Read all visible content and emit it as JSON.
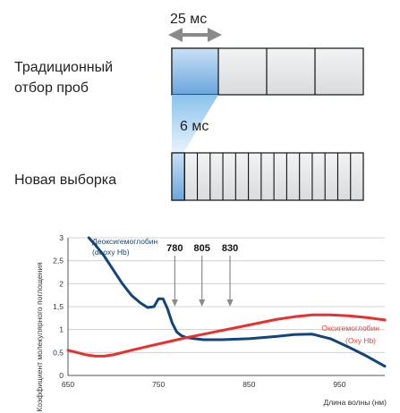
{
  "timing": {
    "period_label": "25 мс",
    "new_period_label": "6 мс"
  },
  "rows": {
    "traditional_line1": "Традиционный",
    "traditional_line2": "отбор проб",
    "new": "Новая выборка"
  },
  "sampling": {
    "traditional_boxes": 4,
    "new_boxes": 15
  },
  "colors": {
    "highlight": "#7fb4e4",
    "box_fill": "#e4e6e8",
    "deoxy": "#13447a",
    "oxy": "#e8312f",
    "oxy_label": "#e8463b",
    "arrow": "#8a8a8a"
  },
  "chart_data": {
    "type": "line",
    "xlabel": "Длина волны (нм)",
    "ylabel": "Коэффициент молекулярного поглощения",
    "xlim": [
      650,
      1000
    ],
    "ylim": [
      0,
      3
    ],
    "x_ticks": [
      "650",
      "750",
      "850",
      "950"
    ],
    "y_ticks": [
      "0",
      "0,5",
      "1",
      "1,5",
      "2",
      "2,5",
      "3"
    ],
    "grid": "horizontal",
    "markers": [
      {
        "label": "780",
        "x": 768
      },
      {
        "label": "805",
        "x": 798
      },
      {
        "label": "830",
        "x": 829
      }
    ],
    "series": [
      {
        "name_line1": "Деоксигемоглобин",
        "name_line2": "(deoxy Hb)",
        "x": [
          673,
          680,
          690,
          700,
          710,
          720,
          730,
          738,
          745,
          750,
          755,
          760,
          765,
          770,
          775,
          780,
          790,
          800,
          820,
          850,
          880,
          900,
          920,
          940,
          960,
          980,
          1000
        ],
        "y": [
          3.0,
          2.85,
          2.6,
          2.3,
          2.0,
          1.75,
          1.58,
          1.48,
          1.5,
          1.67,
          1.67,
          1.45,
          1.15,
          0.95,
          0.87,
          0.83,
          0.8,
          0.78,
          0.78,
          0.8,
          0.85,
          0.89,
          0.9,
          0.8,
          0.62,
          0.42,
          0.2
        ]
      },
      {
        "name_line1": "Оксигемоглобин",
        "name_line2": "(Oxy Hb)",
        "x": [
          650,
          660,
          670,
          680,
          690,
          700,
          720,
          740,
          760,
          780,
          800,
          820,
          840,
          860,
          880,
          900,
          920,
          940,
          960,
          980,
          1000
        ],
        "y": [
          0.55,
          0.5,
          0.45,
          0.42,
          0.42,
          0.45,
          0.55,
          0.64,
          0.73,
          0.82,
          0.9,
          0.98,
          1.06,
          1.14,
          1.22,
          1.28,
          1.32,
          1.32,
          1.3,
          1.26,
          1.21
        ]
      }
    ]
  }
}
